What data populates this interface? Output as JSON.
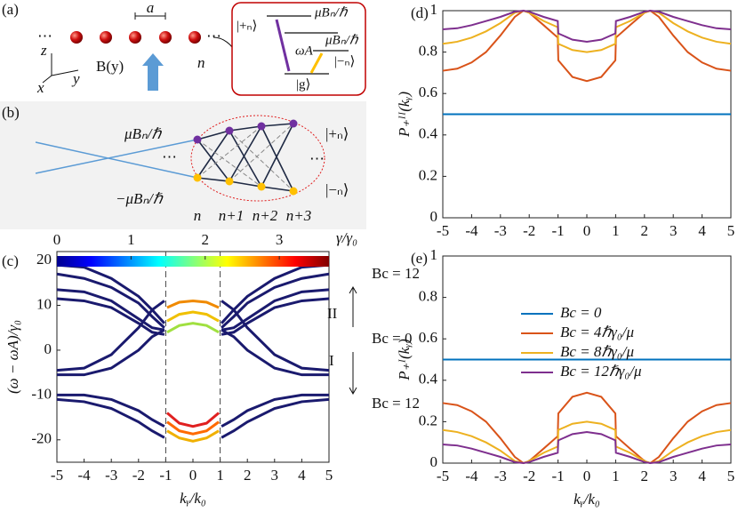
{
  "panel_a": {
    "label": "(a)",
    "spacing": "a",
    "field": "B(y)",
    "site": "n",
    "axis_z": "z",
    "axis_y": "y",
    "axis_x": "x",
    "dots_left": "⋯",
    "dots_right": "⋯",
    "plus": "|+ₙ⟩",
    "minus": "|−ₙ⟩",
    "ground": "|g⟩",
    "splitting_up": "μBₙ/ℏ",
    "splitting_down": "μBₙ/ℏ",
    "omega": "ωA"
  },
  "panel_b": {
    "label": "(b)",
    "upper": "μBₙ/ℏ",
    "lower": "−μBₙ/ℏ",
    "plus": "|+ₙ⟩",
    "minus": "|−ₙ⟩",
    "dots_left": "⋯",
    "dots_right": "⋯",
    "sites": [
      "n",
      "n+1",
      "n+2",
      "n+3"
    ]
  },
  "chart_data": [
    {
      "type": "line",
      "label": "(c)",
      "xlabel": "kᵧ/k₀",
      "ylabel": "(ω − ωA)/γ₀",
      "x": [
        -5,
        -4,
        -3,
        -2,
        -1.5,
        -1.05,
        -0.95,
        -0.5,
        0,
        0.5,
        0.95,
        1.05,
        1.5,
        2,
        3,
        4,
        5
      ],
      "xlim": [
        -5,
        5
      ],
      "xticks": [
        -5,
        -4,
        -3,
        -2,
        -1,
        0,
        1,
        2,
        3,
        4,
        5
      ],
      "ylim": [
        -25,
        22
      ],
      "yticks": [
        -20,
        -10,
        0,
        10,
        20
      ],
      "vlines": [
        -1,
        1
      ],
      "colorbar": {
        "lim": [
          0,
          3.67
        ],
        "ticks": [
          0,
          1,
          2,
          3
        ],
        "label": "γ/γ₀"
      },
      "annotations": [
        "Bc = 12",
        "II",
        "Bc = 0",
        "I",
        "Bc = 12"
      ],
      "series": [
        {
          "color": "#1a1a6e",
          "values": [
            19,
            18.5,
            16,
            12,
            9,
            6,
            null,
            null,
            null,
            null,
            null,
            6,
            9,
            12,
            16,
            18.5,
            19
          ]
        },
        {
          "color": "#1a1a6e",
          "values": [
            17,
            16,
            14,
            10.5,
            7.5,
            5,
            null,
            null,
            null,
            null,
            null,
            5,
            7.5,
            10.5,
            14,
            16,
            17
          ]
        },
        {
          "color": "#1a1a6e",
          "values": [
            13.5,
            13,
            11,
            7,
            5,
            4.5,
            null,
            null,
            null,
            null,
            null,
            4.5,
            5,
            7,
            11,
            13,
            13.5
          ]
        },
        {
          "color": "#1a1a6e",
          "values": [
            11.5,
            11,
            9.5,
            6,
            4,
            3.5,
            null,
            null,
            null,
            null,
            null,
            3.5,
            4,
            6,
            9.5,
            11,
            11.5
          ]
        },
        {
          "color": "#1a1a6e",
          "values": [
            -4.5,
            -4,
            -1,
            5,
            9,
            11,
            null,
            null,
            null,
            null,
            null,
            11,
            9,
            5,
            -1,
            -4,
            -4.5
          ]
        },
        {
          "color": "#1a1a6e",
          "values": [
            -5.5,
            -5.5,
            -4,
            0,
            3,
            4.5,
            null,
            null,
            null,
            null,
            null,
            4.5,
            3,
            0,
            -4,
            -5.5,
            -5.5
          ]
        },
        {
          "color": "#1a1a6e",
          "values": [
            -10,
            -10,
            -11,
            -13.5,
            -15.5,
            -17,
            null,
            null,
            null,
            null,
            null,
            -17,
            -15.5,
            -13.5,
            -11,
            -10,
            -10
          ]
        },
        {
          "color": "#1a1a6e",
          "values": [
            -11,
            -11.5,
            -13,
            -16,
            -18,
            -19.5,
            null,
            null,
            null,
            null,
            null,
            -19.5,
            -18,
            -16,
            -13,
            -11.5,
            -11
          ]
        },
        {
          "color": "#f08a00",
          "values": [
            null,
            null,
            null,
            null,
            null,
            null,
            9.5,
            10.7,
            11,
            10.7,
            9.5,
            null,
            null,
            null,
            null,
            null,
            null
          ]
        },
        {
          "color": "#f0c000",
          "values": [
            null,
            null,
            null,
            null,
            null,
            null,
            6.5,
            8,
            8.5,
            8,
            6.5,
            null,
            null,
            null,
            null,
            null,
            null
          ]
        },
        {
          "color": "#a0e040",
          "values": [
            null,
            null,
            null,
            null,
            null,
            null,
            4,
            5.5,
            6,
            5.5,
            4,
            null,
            null,
            null,
            null,
            null,
            null
          ]
        },
        {
          "color": "#e02020",
          "values": [
            null,
            null,
            null,
            null,
            null,
            null,
            -14,
            -16.3,
            -17,
            -16.3,
            -14,
            null,
            null,
            null,
            null,
            null,
            null
          ]
        },
        {
          "color": "#ff6a00",
          "values": [
            null,
            null,
            null,
            null,
            null,
            null,
            -16,
            -18,
            -18.7,
            -18,
            -16,
            null,
            null,
            null,
            null,
            null,
            null
          ]
        },
        {
          "color": "#f0b000",
          "values": [
            null,
            null,
            null,
            null,
            null,
            null,
            -18,
            -19.6,
            -20.3,
            -19.6,
            -18,
            null,
            null,
            null,
            null,
            null,
            null
          ]
        }
      ]
    },
    {
      "type": "line",
      "label": "(d)",
      "xlabel": "",
      "ylabel": "P₊ᴵᴵ(kᵧ)",
      "x": [
        -5,
        -4.5,
        -4,
        -3.5,
        -3,
        -2.5,
        -2.2,
        -2,
        -1.5,
        -1.01,
        -0.99,
        -0.5,
        0,
        0.5,
        0.99,
        1.01,
        1.5,
        2,
        2.2,
        2.5,
        3,
        3.5,
        4,
        4.5,
        5
      ],
      "xlim": [
        -5,
        5
      ],
      "xticks": [
        -5,
        -4,
        -3,
        -2,
        -1,
        0,
        1,
        2,
        3,
        4,
        5
      ],
      "ylim": [
        0,
        1
      ],
      "yticks": [
        0,
        0.2,
        0.4,
        0.6,
        0.8,
        1
      ],
      "series": [
        {
          "color": "#0072bd",
          "values": [
            0.5,
            0.5,
            0.5,
            0.5,
            0.5,
            0.5,
            0.5,
            0.5,
            0.5,
            0.5,
            0.5,
            0.5,
            0.5,
            0.5,
            0.5,
            0.5,
            0.5,
            0.5,
            0.5,
            0.5,
            0.5,
            0.5,
            0.5,
            0.5,
            0.5
          ]
        },
        {
          "color": "#d95319",
          "values": [
            0.71,
            0.72,
            0.75,
            0.8,
            0.88,
            0.97,
            1,
            0.99,
            0.93,
            0.87,
            0.76,
            0.68,
            0.66,
            0.68,
            0.76,
            0.87,
            0.93,
            0.99,
            1,
            0.97,
            0.88,
            0.8,
            0.75,
            0.72,
            0.71
          ]
        },
        {
          "color": "#edb120",
          "values": [
            0.84,
            0.85,
            0.87,
            0.9,
            0.94,
            0.99,
            1,
            0.99,
            0.95,
            0.92,
            0.84,
            0.81,
            0.8,
            0.81,
            0.84,
            0.92,
            0.95,
            0.99,
            1,
            0.99,
            0.94,
            0.9,
            0.87,
            0.85,
            0.84
          ]
        },
        {
          "color": "#7e2f8e",
          "values": [
            0.91,
            0.915,
            0.93,
            0.95,
            0.97,
            0.995,
            1,
            0.995,
            0.97,
            0.95,
            0.89,
            0.86,
            0.85,
            0.86,
            0.89,
            0.95,
            0.97,
            0.995,
            1,
            0.995,
            0.97,
            0.95,
            0.93,
            0.915,
            0.91
          ]
        }
      ]
    },
    {
      "type": "line",
      "label": "(e)",
      "xlabel": "kᵧ/k₀",
      "ylabel": "P₊ᴵ(kᵧ)",
      "legend": "upper center",
      "x": [
        -5,
        -4.5,
        -4,
        -3.5,
        -3,
        -2.5,
        -2.2,
        -2,
        -1.5,
        -1.01,
        -0.99,
        -0.5,
        0,
        0.5,
        0.99,
        1.01,
        1.5,
        2,
        2.2,
        2.5,
        3,
        3.5,
        4,
        4.5,
        5
      ],
      "xlim": [
        -5,
        5
      ],
      "xticks": [
        -5,
        -4,
        -3,
        -2,
        -1,
        0,
        1,
        2,
        3,
        4,
        5
      ],
      "ylim": [
        0,
        1
      ],
      "yticks": [
        0,
        0.2,
        0.4,
        0.6,
        0.8,
        1
      ],
      "series": [
        {
          "name": "Bc = 0",
          "color": "#0072bd",
          "values": [
            0.5,
            0.5,
            0.5,
            0.5,
            0.5,
            0.5,
            0.5,
            0.5,
            0.5,
            0.5,
            0.5,
            0.5,
            0.5,
            0.5,
            0.5,
            0.5,
            0.5,
            0.5,
            0.5,
            0.5,
            0.5,
            0.5,
            0.5,
            0.5,
            0.5
          ]
        },
        {
          "name": "Bc = 4ℏγ₀/μ",
          "color": "#d95319",
          "values": [
            0.29,
            0.28,
            0.25,
            0.2,
            0.12,
            0.03,
            0,
            0.01,
            0.07,
            0.13,
            0.24,
            0.32,
            0.34,
            0.32,
            0.24,
            0.13,
            0.07,
            0.01,
            0,
            0.03,
            0.12,
            0.2,
            0.25,
            0.28,
            0.29
          ]
        },
        {
          "name": "Bc = 8ℏγ₀/μ",
          "color": "#edb120",
          "values": [
            0.16,
            0.15,
            0.13,
            0.1,
            0.06,
            0.01,
            0,
            0.01,
            0.05,
            0.08,
            0.16,
            0.19,
            0.2,
            0.19,
            0.16,
            0.08,
            0.05,
            0.01,
            0,
            0.01,
            0.06,
            0.1,
            0.13,
            0.15,
            0.16
          ]
        },
        {
          "name": "Bc = 12ℏγ₀/μ",
          "color": "#7e2f8e",
          "values": [
            0.09,
            0.085,
            0.07,
            0.05,
            0.03,
            0.005,
            0,
            0.005,
            0.03,
            0.05,
            0.11,
            0.14,
            0.15,
            0.14,
            0.11,
            0.05,
            0.03,
            0.005,
            0,
            0.005,
            0.03,
            0.05,
            0.07,
            0.085,
            0.09
          ]
        }
      ]
    }
  ]
}
